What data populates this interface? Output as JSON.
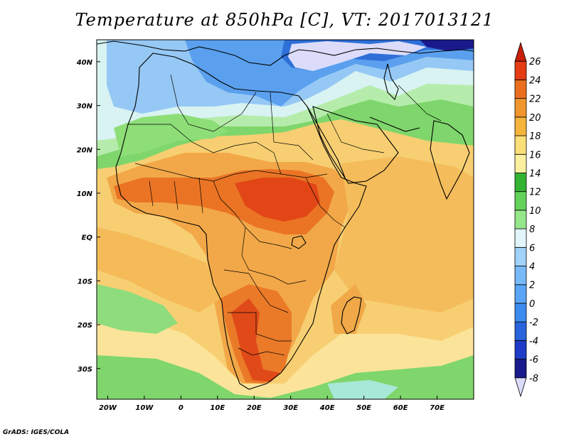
{
  "title": "Temperature at 850hPa [C], VT: 2017013121",
  "credit": "GrADS: IGES/COLA",
  "map": {
    "lon_range": [
      -23,
      80
    ],
    "lat_range": [
      -37,
      45
    ],
    "lon_ticks": [
      {
        "value": -20,
        "label": "20W"
      },
      {
        "value": -10,
        "label": "10W"
      },
      {
        "value": 0,
        "label": "0"
      },
      {
        "value": 10,
        "label": "10E"
      },
      {
        "value": 20,
        "label": "20E"
      },
      {
        "value": 30,
        "label": "30E"
      },
      {
        "value": 40,
        "label": "40E"
      },
      {
        "value": 50,
        "label": "50E"
      },
      {
        "value": 60,
        "label": "60E"
      },
      {
        "value": 70,
        "label": "70E"
      }
    ],
    "lat_ticks": [
      {
        "value": 40,
        "label": "40N"
      },
      {
        "value": 30,
        "label": "30N"
      },
      {
        "value": 20,
        "label": "20N"
      },
      {
        "value": 10,
        "label": "10N"
      },
      {
        "value": 0,
        "label": "EQ"
      },
      {
        "value": -10,
        "label": "10S"
      },
      {
        "value": -20,
        "label": "20S"
      },
      {
        "value": -30,
        "label": "30S"
      }
    ]
  },
  "colorbar": {
    "levels": [
      "-8",
      "-6",
      "-4",
      "-2",
      "0",
      "2",
      "4",
      "6",
      "8",
      "10",
      "12",
      "14",
      "16",
      "18",
      "20",
      "22",
      "24",
      "26"
    ],
    "colors": [
      "#dcdcfa",
      "#1a1a8c",
      "#1e3cc8",
      "#2864dc",
      "#3c8cf0",
      "#5aa5f5",
      "#78b9f8",
      "#a0d2fa",
      "#e1f5fa",
      "#96e68c",
      "#64d25a",
      "#32b432",
      "#faf0a0",
      "#fade78",
      "#f5b43c",
      "#f0962d",
      "#eb6e1e",
      "#e63c14",
      "#c81e0a"
    ]
  },
  "regions": {
    "ocean_base": "#f7cf72",
    "land_base": "#f0a040"
  }
}
